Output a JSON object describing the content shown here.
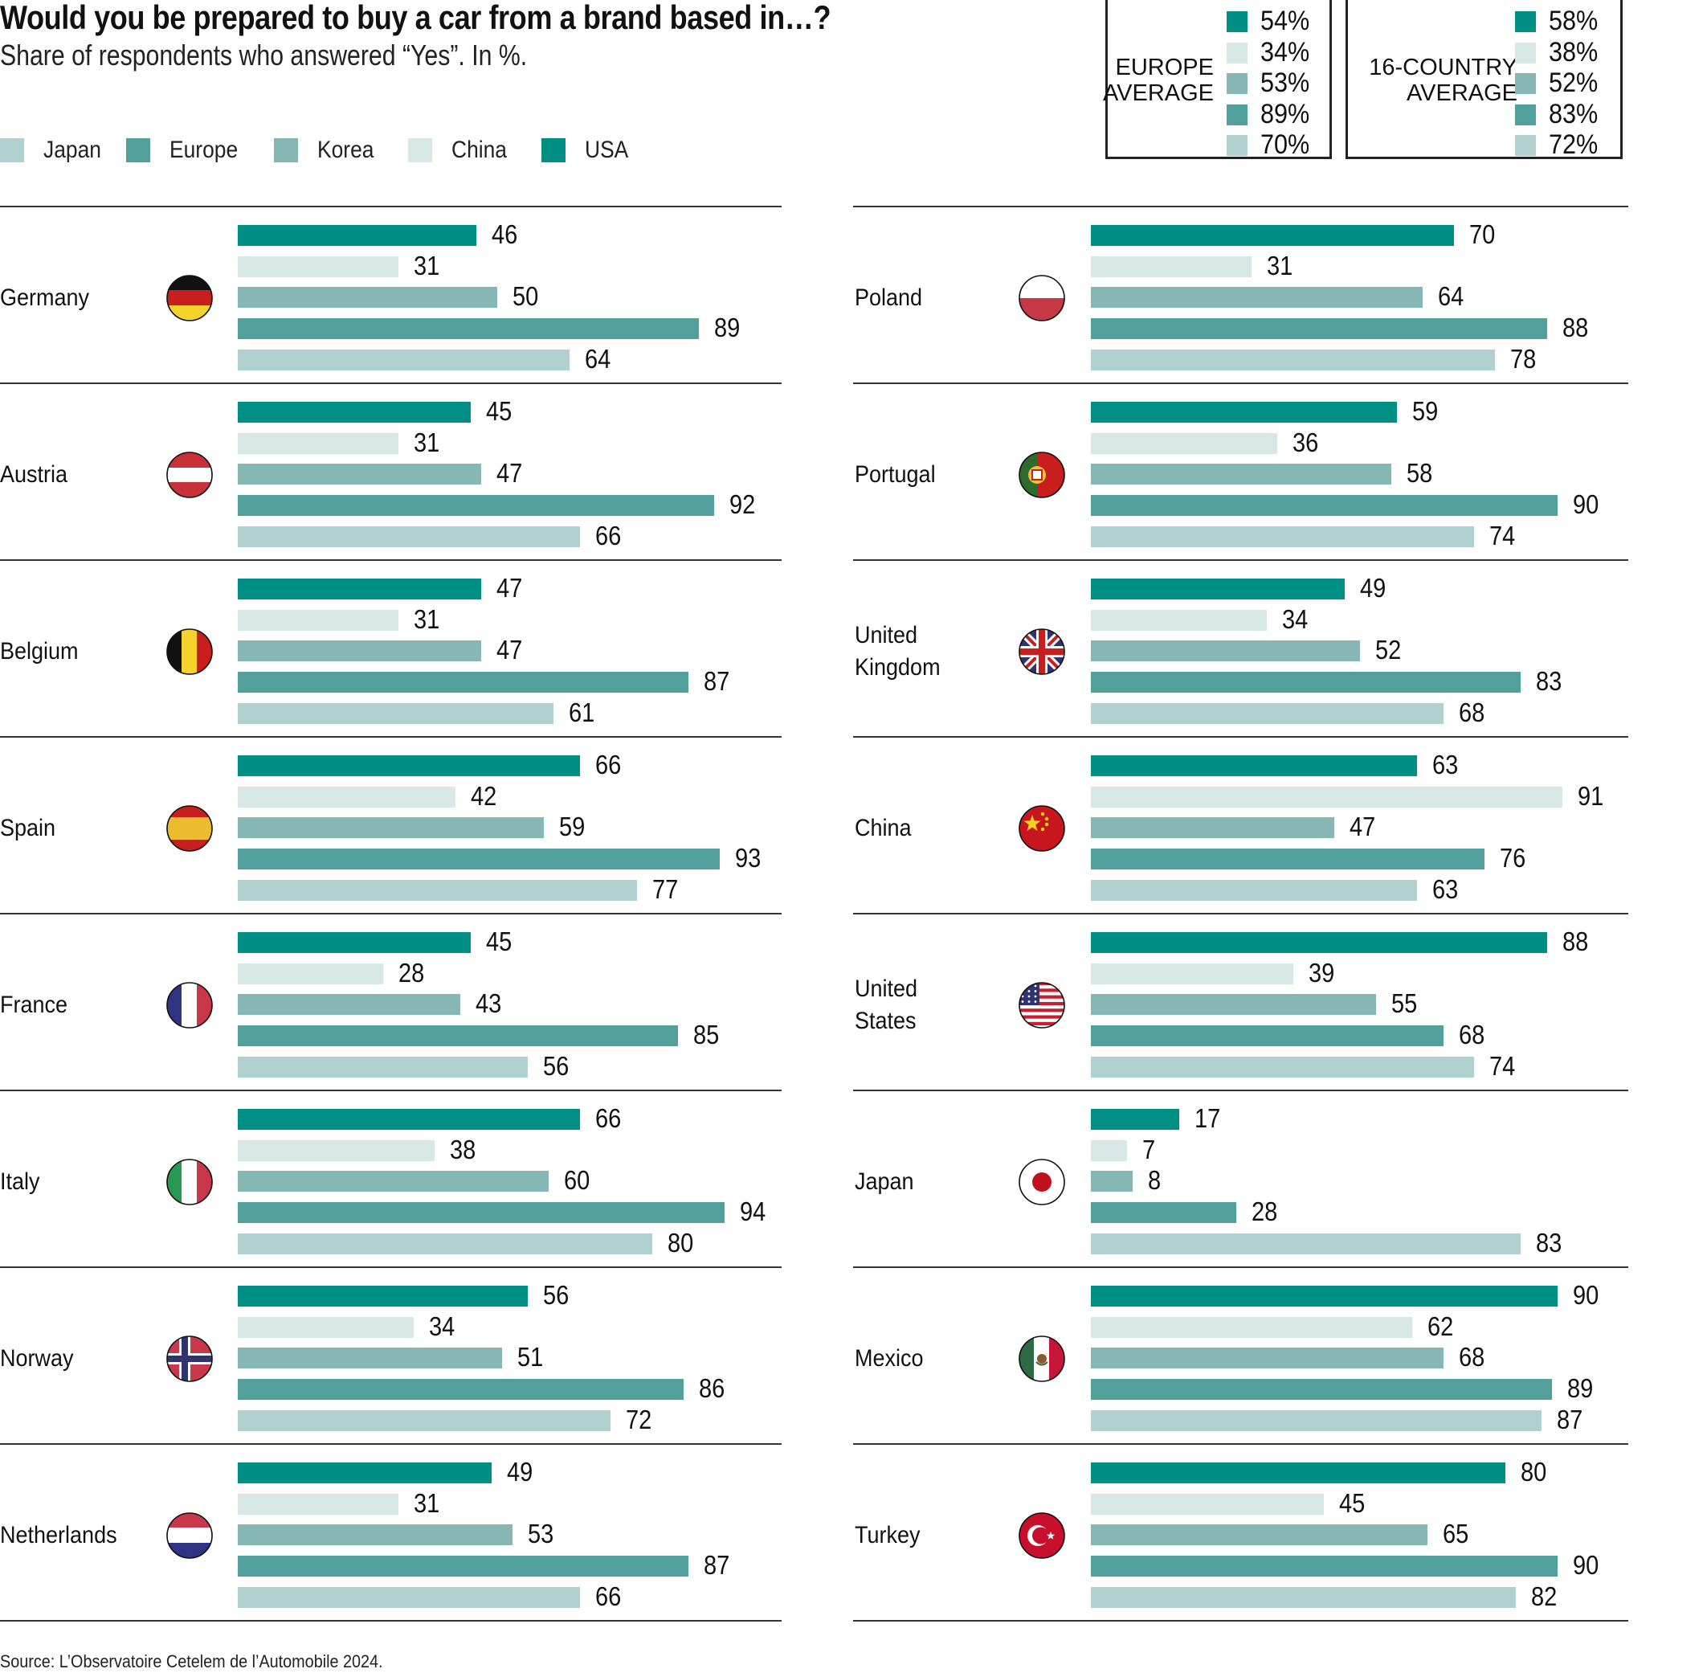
{
  "chart_data": {
    "type": "bar",
    "orientation": "horizontal",
    "title": "Would you be prepared to buy a car from a brand based in…?",
    "subtitle": "Share of respondents who answered “Yes”. In %.",
    "source": "Source: L’Observatoire Cetelem de l’Automobile 2024.",
    "xlim": [
      0,
      100
    ],
    "grid": false,
    "legend": {
      "placement": "top-left",
      "entries": [
        {
          "name": "Japan",
          "color": "#B0D1D0"
        },
        {
          "name": "Europe",
          "color": "#51A09C"
        },
        {
          "name": "Korea",
          "color": "#86B7B4"
        },
        {
          "name": "China",
          "color": "#D8E8E7"
        },
        {
          "name": "USA",
          "color": "#008F85"
        }
      ]
    },
    "series_order": [
      "USA",
      "China",
      "Korea",
      "Europe",
      "Japan"
    ],
    "series_colors": {
      "USA": "#008F85",
      "China": "#D8E8E7",
      "Korea": "#86B7B4",
      "Europe": "#51A09C",
      "Japan": "#B0D1D0"
    },
    "averages": [
      {
        "label_lines": [
          "EUROPE",
          "AVERAGE"
        ],
        "values": {
          "USA": "54%",
          "China": "34%",
          "Korea": "53%",
          "Europe": "89%",
          "Japan": "70%"
        }
      },
      {
        "label_lines": [
          "16-COUNTRY",
          "AVERAGE"
        ],
        "values": {
          "USA": "58%",
          "China": "38%",
          "Korea": "52%",
          "Europe": "83%",
          "Japan": "72%"
        }
      }
    ],
    "columns": [
      {
        "countries": [
          {
            "name": [
              "Germany"
            ],
            "flag": "germany-flag",
            "values": {
              "USA": 46,
              "China": 31,
              "Korea": 50,
              "Europe": 89,
              "Japan": 64
            }
          },
          {
            "name": [
              "Austria"
            ],
            "flag": "austria-flag",
            "values": {
              "USA": 45,
              "China": 31,
              "Korea": 47,
              "Europe": 92,
              "Japan": 66
            }
          },
          {
            "name": [
              "Belgium"
            ],
            "flag": "belgium-flag",
            "values": {
              "USA": 47,
              "China": 31,
              "Korea": 47,
              "Europe": 87,
              "Japan": 61
            }
          },
          {
            "name": [
              "Spain"
            ],
            "flag": "spain-flag",
            "values": {
              "USA": 66,
              "China": 42,
              "Korea": 59,
              "Europe": 93,
              "Japan": 77
            }
          },
          {
            "name": [
              "France"
            ],
            "flag": "france-flag",
            "values": {
              "USA": 45,
              "China": 28,
              "Korea": 43,
              "Europe": 85,
              "Japan": 56
            }
          },
          {
            "name": [
              "Italy"
            ],
            "flag": "italy-flag",
            "values": {
              "USA": 66,
              "China": 38,
              "Korea": 60,
              "Europe": 94,
              "Japan": 80
            }
          },
          {
            "name": [
              "Norway"
            ],
            "flag": "norway-flag",
            "values": {
              "USA": 56,
              "China": 34,
              "Korea": 51,
              "Europe": 86,
              "Japan": 72
            }
          },
          {
            "name": [
              "Netherlands"
            ],
            "flag": "netherlands-flag",
            "values": {
              "USA": 49,
              "China": 31,
              "Korea": 53,
              "Europe": 87,
              "Japan": 66
            }
          }
        ]
      },
      {
        "countries": [
          {
            "name": [
              "Poland"
            ],
            "flag": "poland-flag",
            "values": {
              "USA": 70,
              "China": 31,
              "Korea": 64,
              "Europe": 88,
              "Japan": 78
            }
          },
          {
            "name": [
              "Portugal"
            ],
            "flag": "portugal-flag",
            "values": {
              "USA": 59,
              "China": 36,
              "Korea": 58,
              "Europe": 90,
              "Japan": 74
            }
          },
          {
            "name": [
              "United",
              "Kingdom"
            ],
            "flag": "united-kingdom-flag",
            "values": {
              "USA": 49,
              "China": 34,
              "Korea": 52,
              "Europe": 83,
              "Japan": 68
            }
          },
          {
            "name": [
              "China"
            ],
            "flag": "china-flag",
            "values": {
              "USA": 63,
              "China": 91,
              "Korea": 47,
              "Europe": 76,
              "Japan": 63
            }
          },
          {
            "name": [
              "United",
              "States"
            ],
            "flag": "united-states-flag",
            "values": {
              "USA": 88,
              "China": 39,
              "Korea": 55,
              "Europe": 68,
              "Japan": 74
            }
          },
          {
            "name": [
              "Japan"
            ],
            "flag": "japan-flag",
            "values": {
              "USA": 17,
              "China": 7,
              "Korea": 8,
              "Europe": 28,
              "Japan": 83
            }
          },
          {
            "name": [
              "Mexico"
            ],
            "flag": "mexico-flag",
            "values": {
              "USA": 90,
              "China": 62,
              "Korea": 68,
              "Europe": 89,
              "Japan": 87
            }
          },
          {
            "name": [
              "Turkey"
            ],
            "flag": "turkey-flag",
            "values": {
              "USA": 80,
              "China": 45,
              "Korea": 65,
              "Europe": 90,
              "Japan": 82
            }
          }
        ]
      }
    ]
  }
}
